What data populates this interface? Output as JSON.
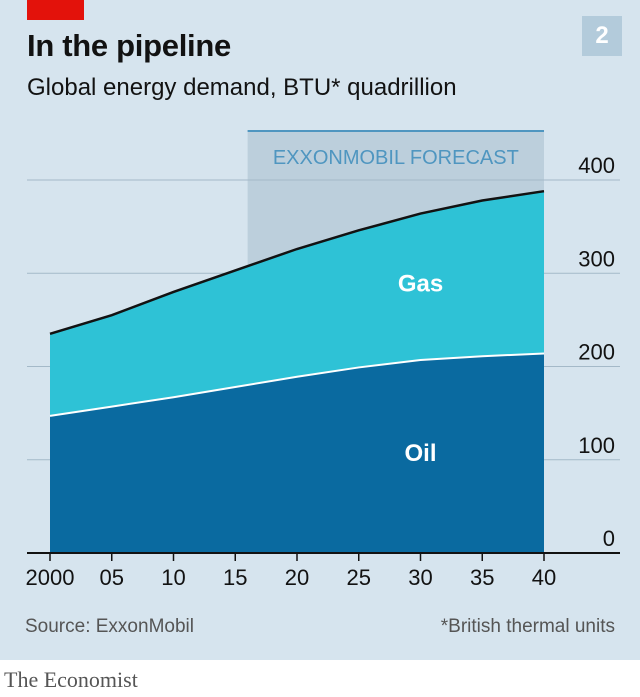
{
  "header": {
    "title": "In the pipeline",
    "subtitle": "Global energy demand, BTU* quadrillion",
    "chart_number": "2"
  },
  "footer": {
    "source": "Source: ExxonMobil",
    "footnote": "*British thermal units",
    "publisher": "The Economist"
  },
  "colors": {
    "background": "#d6e4ee",
    "oil": "#0a6aa0",
    "gas": "#2ec2d6",
    "forecast_shade": "#bccfdc",
    "total_line": "#121212",
    "accent_red": "#e3120b"
  },
  "chart_data": {
    "type": "area",
    "stacked": true,
    "x": [
      2000,
      2005,
      2010,
      2015,
      2020,
      2025,
      2030,
      2035,
      2040
    ],
    "x_tick_labels": [
      "2000",
      "05",
      "10",
      "15",
      "20",
      "25",
      "30",
      "35",
      "40"
    ],
    "series": [
      {
        "name": "Oil",
        "values": [
          147,
          157,
          167,
          178,
          189,
          199,
          207,
          211,
          214
        ]
      },
      {
        "name": "Gas",
        "values": [
          88,
          98,
          113,
          125,
          137,
          147,
          157,
          167,
          174
        ]
      }
    ],
    "totals": [
      235,
      255,
      280,
      303,
      326,
      346,
      364,
      378,
      388
    ],
    "ylim": [
      0,
      400
    ],
    "y_ticks": [
      0,
      100,
      200,
      300,
      400
    ],
    "y_axis_side": "right",
    "grid": true,
    "forecast_band": {
      "x_start": 2016,
      "x_end": 2040,
      "label": "EXXONMOBIL FORECAST"
    },
    "area_labels": [
      "Gas",
      "Oil"
    ]
  }
}
